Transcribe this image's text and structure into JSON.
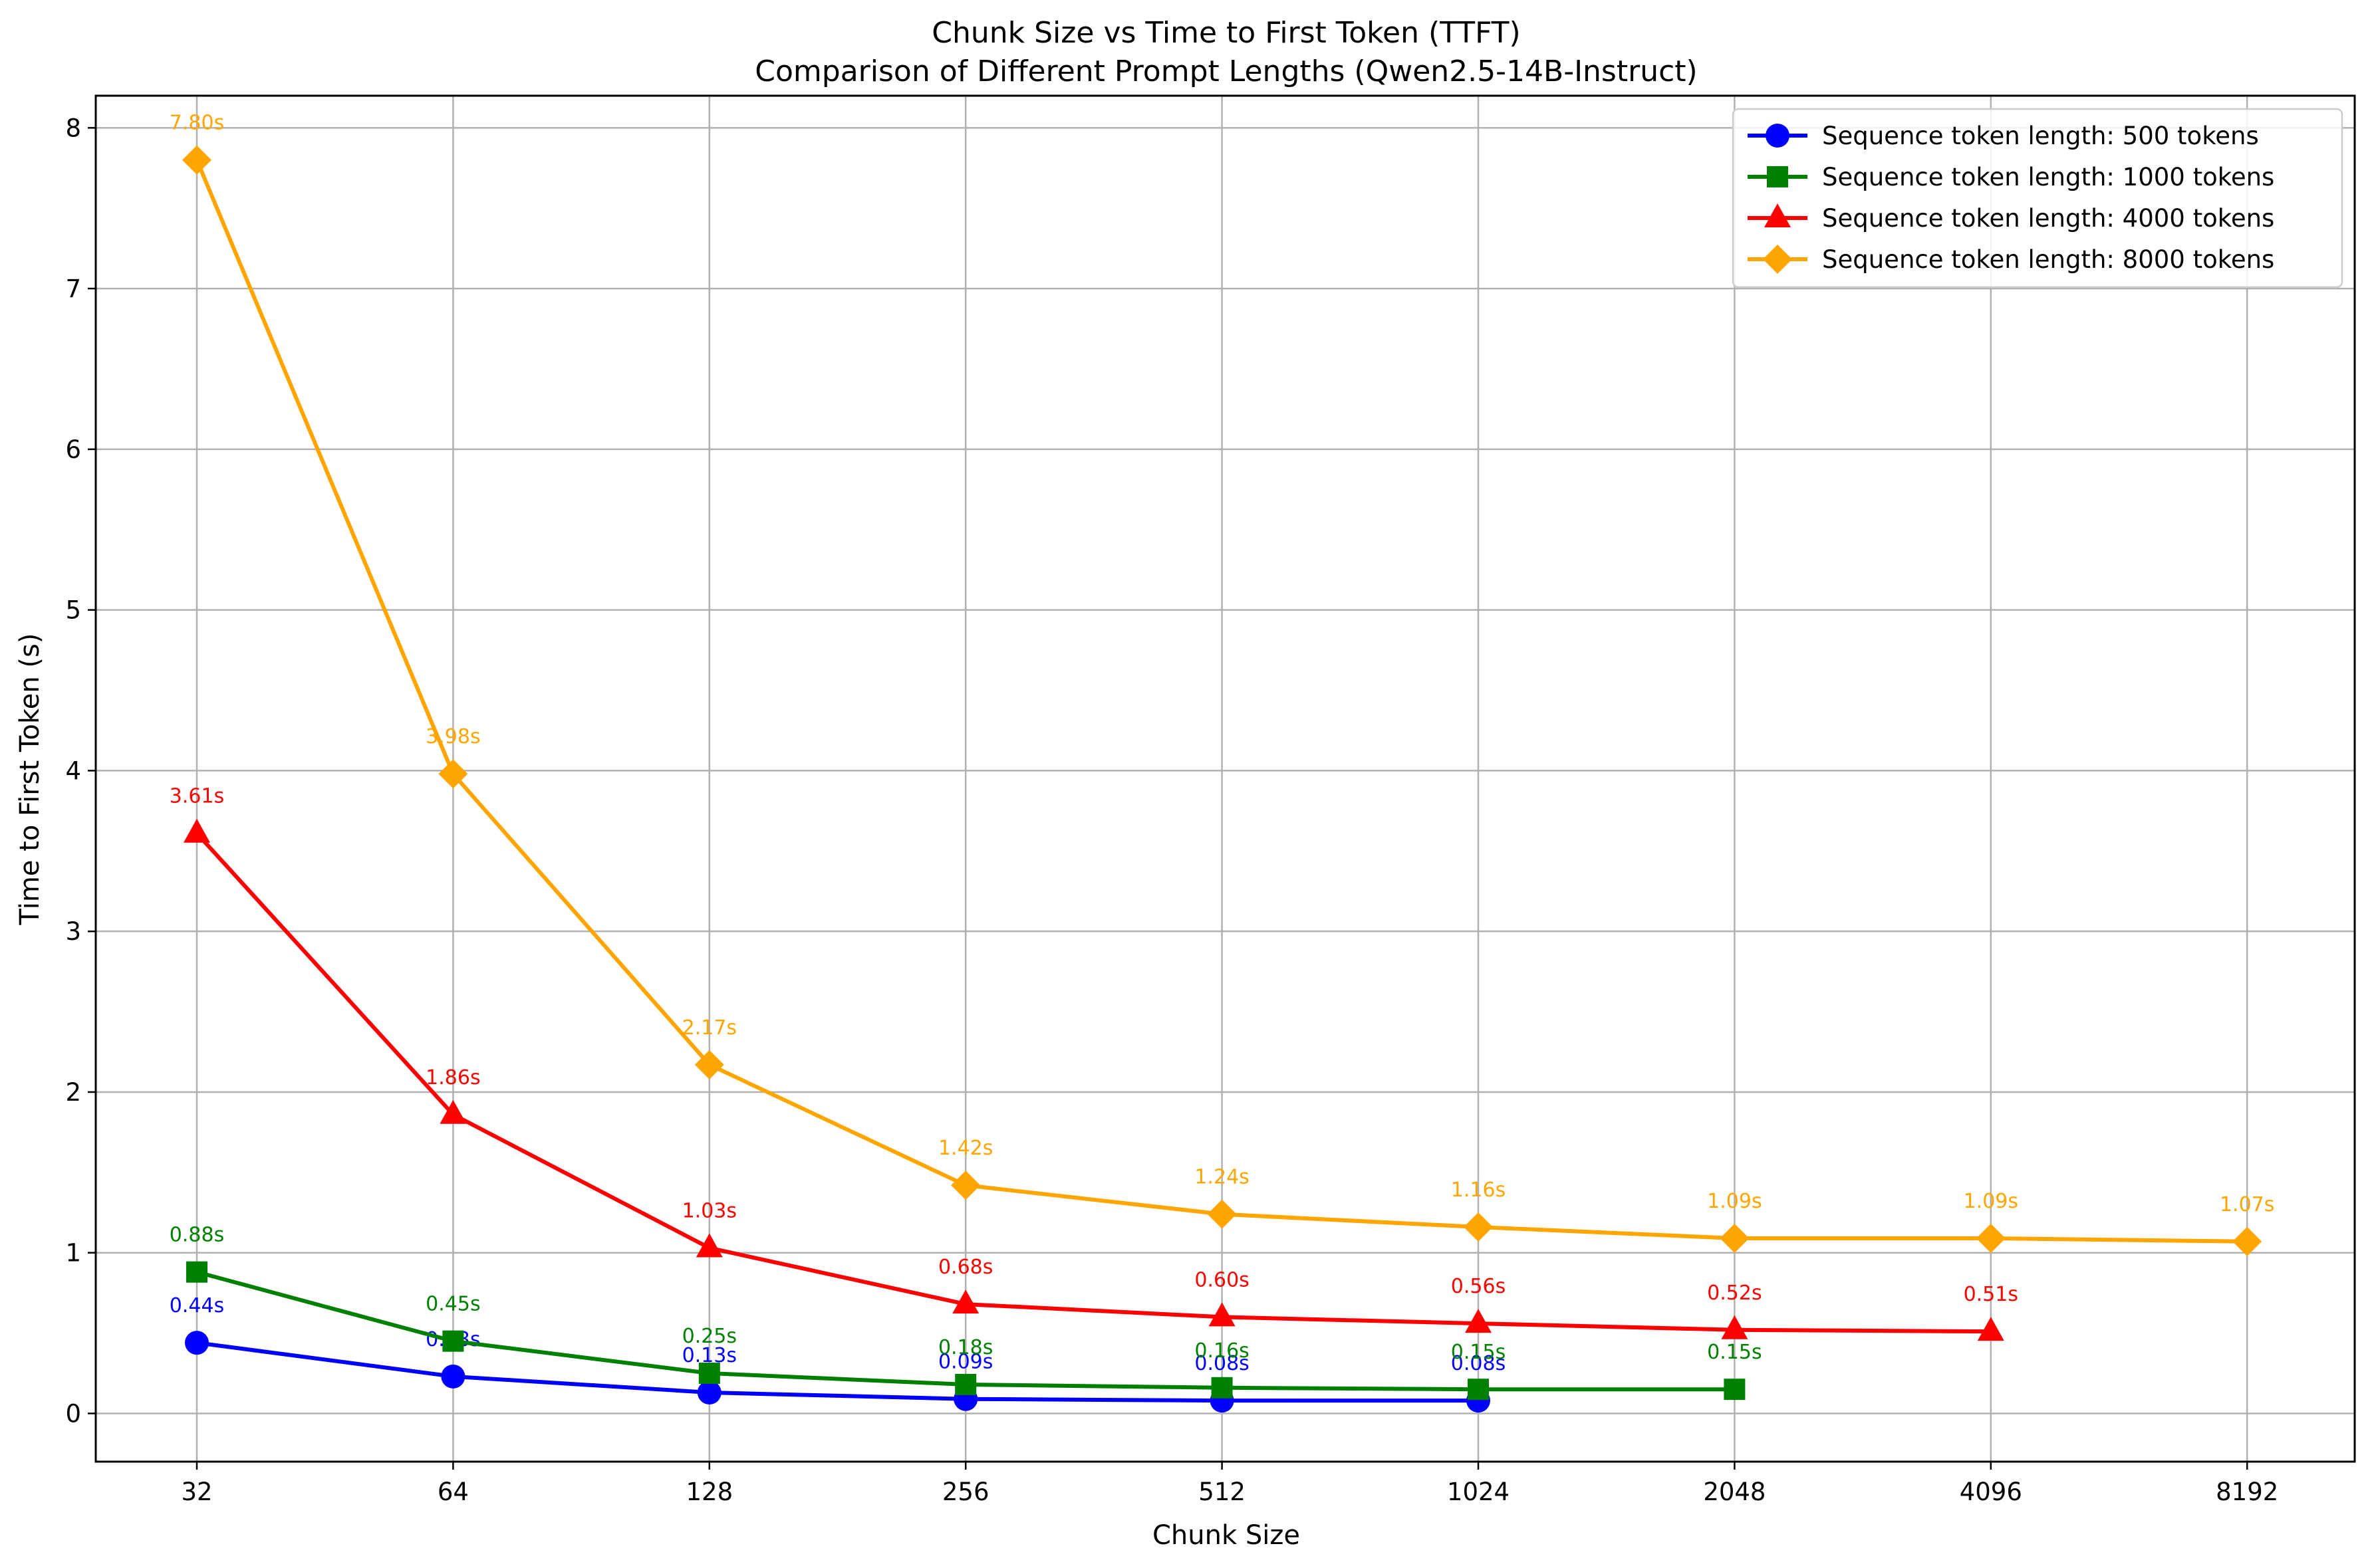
{
  "chart_data": {
    "type": "line",
    "title": "Chunk Size vs Time to First Token (TTFT)",
    "subtitle": "Comparison of Different Prompt Lengths (Qwen2.5-14B-Instruct)",
    "xlabel": "Chunk Size",
    "ylabel": "Time to First Token (s)",
    "x_scale": "log2",
    "categories": [
      "32",
      "64",
      "128",
      "256",
      "512",
      "1024",
      "2048",
      "4096",
      "8192"
    ],
    "x": [
      32,
      64,
      128,
      256,
      512,
      1024,
      2048,
      4096,
      8192
    ],
    "ylim": [
      -0.3,
      8.2
    ],
    "yticks": [
      "0",
      "1",
      "2",
      "3",
      "4",
      "5",
      "6",
      "7",
      "8"
    ],
    "grid": true,
    "legend_position": "top-right",
    "series": [
      {
        "name": "Sequence token length: 500 tokens",
        "color": "#0000ff",
        "marker": "circle",
        "x": [
          32,
          64,
          128,
          256,
          512,
          1024
        ],
        "values": [
          0.44,
          0.23,
          0.13,
          0.09,
          0.08,
          0.08
        ],
        "labels": [
          "0.44s",
          "0.23s",
          "0.13s",
          "0.09s",
          "0.08s",
          "0.08s"
        ]
      },
      {
        "name": "Sequence token length: 1000 tokens",
        "color": "#008000",
        "marker": "square",
        "x": [
          32,
          64,
          128,
          256,
          512,
          1024,
          2048
        ],
        "values": [
          0.88,
          0.45,
          0.25,
          0.18,
          0.16,
          0.15,
          0.15
        ],
        "labels": [
          "0.88s",
          "0.45s",
          "0.25s",
          "0.18s",
          "0.16s",
          "0.15s",
          "0.15s"
        ]
      },
      {
        "name": "Sequence token length: 4000 tokens",
        "color": "#ff0000",
        "marker": "triangle",
        "x": [
          32,
          64,
          128,
          256,
          512,
          1024,
          2048,
          4096
        ],
        "values": [
          3.61,
          1.86,
          1.03,
          0.68,
          0.6,
          0.56,
          0.52,
          0.51
        ],
        "labels": [
          "3.61s",
          "1.86s",
          "1.03s",
          "0.68s",
          "0.60s",
          "0.56s",
          "0.52s",
          "0.51s"
        ]
      },
      {
        "name": "Sequence token length: 8000 tokens",
        "color": "#ffa500",
        "marker": "diamond",
        "x": [
          32,
          64,
          128,
          256,
          512,
          1024,
          2048,
          4096,
          8192
        ],
        "values": [
          7.8,
          3.98,
          2.17,
          1.42,
          1.24,
          1.16,
          1.09,
          1.09,
          1.07
        ],
        "labels": [
          "7.80s",
          "3.98s",
          "2.17s",
          "1.42s",
          "1.24s",
          "1.16s",
          "1.09s",
          "1.09s",
          "1.07s"
        ]
      }
    ]
  }
}
